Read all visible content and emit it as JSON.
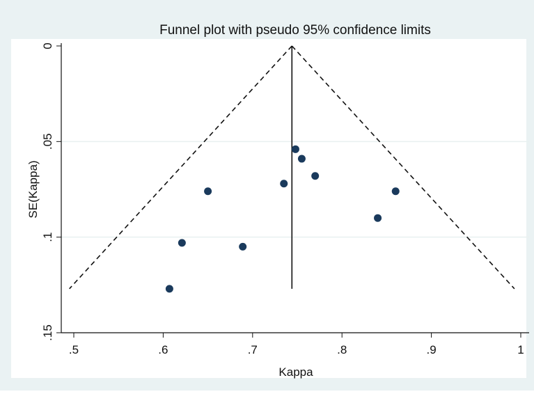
{
  "chart_data": {
    "type": "scatter",
    "title": "Funnel plot with pseudo 95% confidence limits",
    "xlabel": "Kappa",
    "ylabel": "SE(Kappa)",
    "xlim": [
      0.49,
      1.0
    ],
    "ylim": [
      0.15,
      0
    ],
    "y_axis_reversed": true,
    "grid": true,
    "legend": "none",
    "x_ticks": [
      0.5,
      0.6,
      0.7,
      0.8,
      0.9,
      1
    ],
    "x_tick_labels": [
      ".5",
      ".6",
      ".7",
      ".8",
      ".9",
      "1"
    ],
    "y_ticks": [
      0,
      0.05,
      0.1,
      0.15
    ],
    "y_tick_labels": [
      "0",
      ".05",
      ".1",
      ".15"
    ],
    "points": [
      {
        "x": 0.607,
        "y": 0.127
      },
      {
        "x": 0.621,
        "y": 0.103
      },
      {
        "x": 0.65,
        "y": 0.076
      },
      {
        "x": 0.689,
        "y": 0.105
      },
      {
        "x": 0.735,
        "y": 0.072
      },
      {
        "x": 0.748,
        "y": 0.054
      },
      {
        "x": 0.755,
        "y": 0.059
      },
      {
        "x": 0.77,
        "y": 0.068
      },
      {
        "x": 0.84,
        "y": 0.09
      },
      {
        "x": 0.86,
        "y": 0.076
      }
    ],
    "pooled_estimate": 0.744,
    "max_se": 0.127,
    "z_value": 1.96,
    "colors": {
      "points": "#1a3a5c",
      "lines": "#111111",
      "grid": "#e9f0f0",
      "outer_bg": "#eaf2f3",
      "plot_bg": "#ffffff"
    }
  }
}
